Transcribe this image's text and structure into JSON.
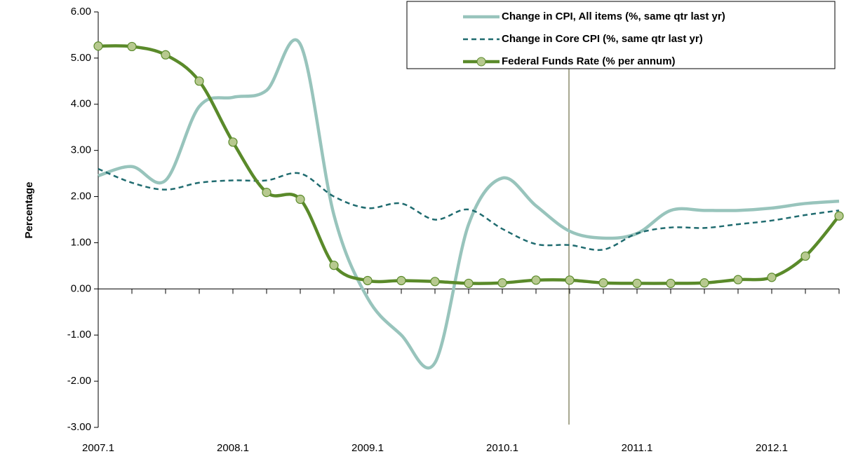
{
  "chart_data": {
    "type": "line",
    "y_label": "Percentage",
    "categories": [
      "2007.1",
      null,
      null,
      null,
      "2008.1",
      null,
      null,
      null,
      "2009.1",
      null,
      null,
      null,
      "2010.1",
      null,
      null,
      null,
      "2011.1",
      null,
      null,
      null,
      "2012.1",
      null,
      null
    ],
    "series": [
      {
        "name": "Change in CPI, All items (%, same qtr last yr)",
        "color": "#98c4bc",
        "style": "solid",
        "values": [
          2.45,
          2.65,
          2.35,
          3.95,
          4.15,
          4.3,
          5.3,
          1.6,
          -0.2,
          -1.0,
          -1.6,
          1.4,
          2.4,
          1.8,
          1.25,
          1.1,
          1.2,
          1.7,
          1.7,
          1.7,
          1.75,
          1.85,
          1.9
        ]
      },
      {
        "name": "Change in Core CPI (%, same qtr last yr)",
        "color": "#1f6b6f",
        "style": "dashed",
        "values": [
          2.6,
          2.3,
          2.15,
          2.3,
          2.35,
          2.35,
          2.5,
          2.0,
          1.75,
          1.85,
          1.5,
          1.72,
          1.3,
          0.97,
          0.95,
          0.85,
          1.2,
          1.33,
          1.32,
          1.4,
          1.48,
          1.6,
          1.7
        ]
      },
      {
        "name": "Federal Funds Rate (% per annum)",
        "color": "#5a8a2a",
        "style": "markers",
        "values": [
          5.26,
          5.25,
          5.07,
          4.5,
          3.18,
          2.09,
          1.94,
          0.51,
          0.18,
          0.18,
          0.16,
          0.12,
          0.13,
          0.19,
          0.19,
          0.13,
          0.12,
          0.12,
          0.13,
          0.2,
          0.25,
          0.71,
          1.58
        ]
      }
    ],
    "ylim": [
      -3,
      6
    ],
    "yticks": [
      {
        "value": -3,
        "label": "-3.00"
      },
      {
        "value": -2,
        "label": "-2.00"
      },
      {
        "value": -1,
        "label": "-1.00"
      },
      {
        "value": 0,
        "label": "0.00"
      },
      {
        "value": 1,
        "label": "1.00"
      },
      {
        "value": 2,
        "label": "2.00"
      },
      {
        "value": 3,
        "label": "3.00"
      },
      {
        "value": 4,
        "label": "4.00"
      },
      {
        "value": 5,
        "label": "5.00"
      },
      {
        "value": 6,
        "label": "6.00"
      }
    ],
    "legend": "upper right"
  }
}
